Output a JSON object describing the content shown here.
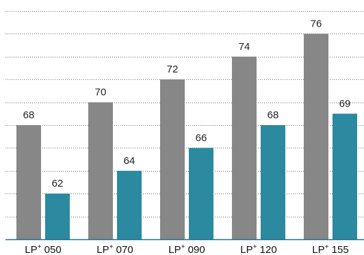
{
  "chart_data": {
    "type": "bar",
    "categories": [
      {
        "prefix": "LP",
        "superscript": "+",
        "suffix": " 050"
      },
      {
        "prefix": "LP",
        "superscript": "+",
        "suffix": " 070"
      },
      {
        "prefix": "LP",
        "superscript": "+",
        "suffix": " 090"
      },
      {
        "prefix": "LP",
        "superscript": "+",
        "suffix": " 120"
      },
      {
        "prefix": "LP",
        "superscript": "+",
        "suffix": " 155"
      }
    ],
    "series": [
      {
        "color": "#878787",
        "values": [
          68,
          70,
          72,
          74,
          76
        ]
      },
      {
        "color": "#2b89a0",
        "values": [
          62,
          64,
          66,
          68,
          69
        ]
      }
    ],
    "title": "",
    "xlabel": "",
    "ylabel": "",
    "ylim": [
      58,
      78
    ],
    "gridlines": [
      60,
      62,
      64,
      66,
      68,
      70,
      72,
      74,
      76,
      78
    ],
    "grid": true,
    "grid_style": "dotted",
    "legend": "none",
    "baseline_color": "#1f6f8b"
  }
}
